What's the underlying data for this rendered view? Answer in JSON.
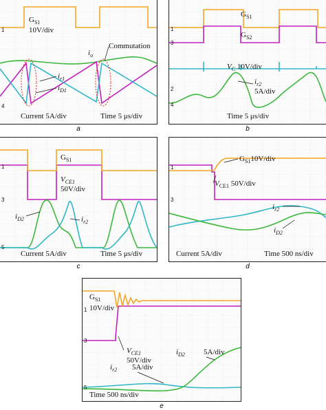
{
  "panels": [
    {
      "caption": "a",
      "channels": [
        "1",
        "4"
      ],
      "labels": [
        {
          "base": "G",
          "sub": "S1"
        },
        "10V/div",
        {
          "base": "i",
          "sub": "o"
        },
        "Commutation",
        {
          "base": "i",
          "sub": "r1"
        },
        {
          "base": "i",
          "sub": "D1"
        },
        "Current 5A/div",
        "Time 5 μs/div"
      ]
    },
    {
      "caption": "b",
      "channels": [
        "1",
        "3",
        "2",
        "4"
      ],
      "labels": [
        {
          "base": "G",
          "sub": "S1"
        },
        {
          "base": "G",
          "sub": "S2"
        },
        {
          "base": "V",
          "sub": "C",
          "after": " 10V/div"
        },
        {
          "base": "i",
          "sub": "r2"
        },
        "5A/div",
        "Time 5 μs/div"
      ]
    },
    {
      "caption": "c",
      "channels": [
        "1",
        "3",
        "5"
      ],
      "labels": [
        {
          "base": "G",
          "sub": "S1"
        },
        {
          "base": "V",
          "sub": "CE1"
        },
        "50V/div",
        {
          "base": "i",
          "sub": "D2"
        },
        {
          "base": "i",
          "sub": "r2"
        },
        "Current 5A/div",
        "Time 5 μs/div"
      ]
    },
    {
      "caption": "d",
      "channels": [
        "1",
        "3"
      ],
      "labels": [
        {
          "base": "G",
          "sub": "S1",
          "after": "10V/div"
        },
        {
          "base": "V",
          "sub": "CE1",
          "after": " 50V/div"
        },
        {
          "base": "i",
          "sub": "r2"
        },
        {
          "base": "i",
          "sub": "D2"
        },
        "Current 5A/div",
        "Time 500 ns/div"
      ]
    },
    {
      "caption": "e",
      "channels": [
        "1",
        "3",
        "5"
      ],
      "labels": [
        {
          "base": "G",
          "sub": "S1"
        },
        "10V/div",
        {
          "base": "V",
          "sub": "CE1"
        },
        "50V/div",
        {
          "base": "i",
          "sub": "D2"
        },
        "5A/div",
        {
          "base": "i",
          "sub": "r2"
        },
        "5A/div",
        "Time 500 ns/div"
      ]
    }
  ]
}
